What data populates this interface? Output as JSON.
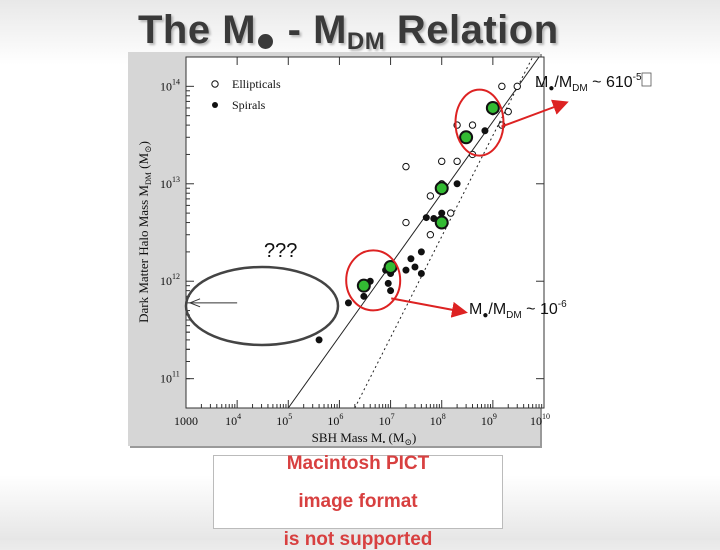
{
  "slide": {
    "title_prefix": "The M",
    "title_middle": " - M",
    "title_sub": "DM",
    "title_suffix": " Relation"
  },
  "annotations": {
    "upper_ratio_prefix": "M",
    "upper_ratio_mid": "/M",
    "upper_ratio_sub": "DM",
    "upper_ratio_value": " ~ 6",
    "upper_ratio_missing_glyph": "",
    "upper_ratio_base": "10",
    "upper_ratio_exp": "-5",
    "lower_ratio_prefix": "M",
    "lower_ratio_mid": "/M",
    "lower_ratio_sub": "DM",
    "lower_ratio_value": " ~ 10",
    "lower_ratio_exp": "-6",
    "question": "???"
  },
  "colors": {
    "highlight_fill": "#33bb33",
    "callout_red": "#dd2222",
    "ellipse_dark": "#444444"
  },
  "placeholder": {
    "line1": "Macintosh PICT",
    "line2": "image format",
    "line3": "is not supported"
  },
  "chart_data": {
    "type": "scatter",
    "x_scale": "log",
    "y_scale": "log",
    "xlim": [
      1000,
      10000000000
    ],
    "ylim": [
      50000000000,
      200000000000000
    ],
    "xlabel": "SBH Mass",
    "xlabel_symbol": "M",
    "xlabel_unit": "(M",
    "ylabel": "Dark Matter Halo Mass",
    "ylabel_symbol": "M",
    "ylabel_sub": "DM",
    "ylabel_unit": "(M",
    "x_ticks": [
      {
        "value": 1000,
        "label": "1000"
      },
      {
        "value": 10000,
        "base": "10",
        "exp": "4"
      },
      {
        "value": 100000,
        "base": "10",
        "exp": "5"
      },
      {
        "value": 1000000,
        "base": "10",
        "exp": "6"
      },
      {
        "value": 10000000,
        "base": "10",
        "exp": "7"
      },
      {
        "value": 100000000,
        "base": "10",
        "exp": "8"
      },
      {
        "value": 1000000000,
        "base": "10",
        "exp": "9"
      },
      {
        "value": 10000000000,
        "base": "10",
        "exp": "10"
      }
    ],
    "y_ticks": [
      {
        "value": 100000000000,
        "base": "10",
        "exp": "11"
      },
      {
        "value": 1000000000000,
        "base": "10",
        "exp": "12"
      },
      {
        "value": 10000000000000,
        "base": "10",
        "exp": "13"
      },
      {
        "value": 100000000000000,
        "base": "10",
        "exp": "14"
      }
    ],
    "legend": {
      "placement": "top-left",
      "entries": [
        {
          "name": "Ellipticals",
          "marker": "open-circle"
        },
        {
          "name": "Spirals",
          "marker": "filled-circle"
        }
      ]
    },
    "series": [
      {
        "name": "Ellipticals",
        "marker": "open-circle",
        "points": [
          {
            "x": 200000000,
            "y": 40000000000000
          },
          {
            "x": 400000000,
            "y": 40000000000000
          },
          {
            "x": 1500000000,
            "y": 100000000000000
          },
          {
            "x": 3000000000,
            "y": 100000000000000
          },
          {
            "x": 1000000000,
            "y": 55000000000000
          },
          {
            "x": 2000000000,
            "y": 55000000000000
          },
          {
            "x": 1500000000,
            "y": 40000000000000
          },
          {
            "x": 100000000,
            "y": 17000000000000
          },
          {
            "x": 200000000,
            "y": 17000000000000
          },
          {
            "x": 400000000,
            "y": 20000000000000
          },
          {
            "x": 20000000,
            "y": 15000000000000
          },
          {
            "x": 100000000,
            "y": 10000000000000
          },
          {
            "x": 60000000,
            "y": 7500000000000
          },
          {
            "x": 150000000,
            "y": 5000000000000
          },
          {
            "x": 20000000,
            "y": 4000000000000
          },
          {
            "x": 60000000,
            "y": 3000000000000
          }
        ]
      },
      {
        "name": "Spirals",
        "marker": "filled-circle",
        "points": [
          {
            "x": 200000000,
            "y": 10000000000000
          },
          {
            "x": 700000000,
            "y": 35000000000000
          },
          {
            "x": 100000000,
            "y": 5000000000000
          },
          {
            "x": 70000000,
            "y": 4400000000000
          },
          {
            "x": 50000000,
            "y": 4500000000000
          },
          {
            "x": 40000000,
            "y": 2000000000000
          },
          {
            "x": 25000000,
            "y": 1700000000000
          },
          {
            "x": 30000000,
            "y": 1400000000000
          },
          {
            "x": 8000000,
            "y": 1300000000000
          },
          {
            "x": 10000000,
            "y": 1200000000000
          },
          {
            "x": 9000000,
            "y": 950000000000
          },
          {
            "x": 4000000,
            "y": 1000000000000
          },
          {
            "x": 10000000,
            "y": 800000000000
          },
          {
            "x": 20000000,
            "y": 1300000000000
          },
          {
            "x": 40000000,
            "y": 1200000000000
          },
          {
            "x": 3000000,
            "y": 700000000000
          },
          {
            "x": 1500000,
            "y": 600000000000
          },
          {
            "x": 400000,
            "y": 250000000000
          }
        ]
      }
    ],
    "highlighted": [
      {
        "x": 1000000000,
        "y": 60000000000000
      },
      {
        "x": 300000000,
        "y": 30000000000000
      },
      {
        "x": 100000000,
        "y": 9000000000000
      },
      {
        "x": 100000000,
        "y": 4000000000000
      },
      {
        "x": 10000000,
        "y": 1400000000000
      },
      {
        "x": 3000000,
        "y": 900000000000
      }
    ],
    "fit_lines": [
      {
        "style": "solid",
        "points": [
          {
            "x": 100000,
            "y": 50000000000
          },
          {
            "x": 8000000000,
            "y": 200000000000000
          }
        ]
      },
      {
        "style": "dotted",
        "points": [
          {
            "x": 2000000,
            "y": 50000000000
          },
          {
            "x": 6000000000,
            "y": 200000000000000
          }
        ]
      }
    ],
    "arrow": {
      "x_tail": 10000,
      "x_head": 1200,
      "y": 600000000000
    }
  }
}
